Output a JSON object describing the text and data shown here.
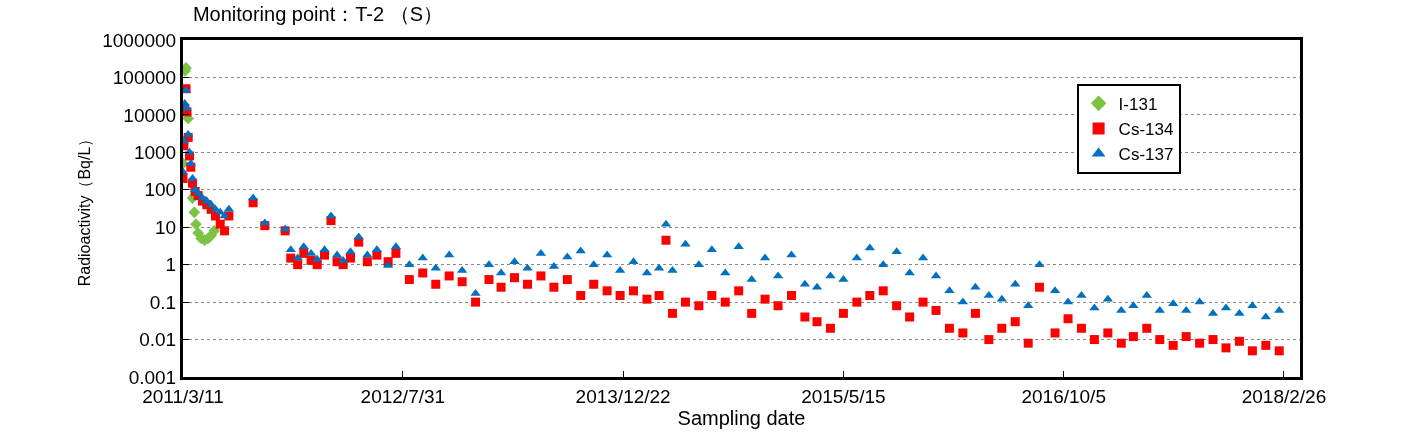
{
  "chart_data": {
    "type": "scatter",
    "title": "Monitoring point：T-2 （S）",
    "xlabel": "Sampling date",
    "ylabel": "Radioactivity（Bq/L）",
    "log": "y",
    "grid": "y",
    "legend": "top right",
    "xlim": [
      "2011-03-11",
      "2018-04-04"
    ],
    "xticks": [
      {
        "value": "2011-03-11",
        "label": "2011/3/11"
      },
      {
        "value": "2012-07-31",
        "label": "2012/7/31"
      },
      {
        "value": "2013-12-22",
        "label": "2013/12/22"
      },
      {
        "value": "2015-05-15",
        "label": "2015/5/15"
      },
      {
        "value": "2016-10-05",
        "label": "2016/10/5"
      },
      {
        "value": "2018-02-26",
        "label": "2018/2/26"
      }
    ],
    "ylim": [
      0.001,
      1000000
    ],
    "yticks": [
      0.001,
      0.01,
      0.1,
      1,
      10,
      100,
      1000,
      10000,
      100000,
      1000000
    ],
    "series": [
      {
        "name": "I-131",
        "color": "#7dc242",
        "marker": "diamond",
        "x": [
          "2011-03-11",
          "2011-03-13",
          "2011-03-16",
          "2011-03-18",
          "2011-03-20",
          "2011-03-23",
          "2011-03-26",
          "2011-03-29",
          "2011-04-02",
          "2011-04-06",
          "2011-04-10",
          "2011-04-15",
          "2011-04-22",
          "2011-04-30",
          "2011-05-08",
          "2011-05-15",
          "2011-05-22"
        ],
        "values": [
          500,
          null,
          150000,
          180000,
          null,
          8000,
          null,
          null,
          60,
          25,
          12,
          7,
          5,
          4.5,
          5,
          6,
          8
        ]
      },
      {
        "name": "Cs-134",
        "color": "#ff0000",
        "marker": "square",
        "x": [
          "2011-03-11",
          "2011-03-13",
          "2011-03-15",
          "2011-03-18",
          "2011-03-20",
          "2011-03-23",
          "2011-03-26",
          "2011-03-29",
          "2011-04-02",
          "2011-04-08",
          "2011-04-15",
          "2011-04-25",
          "2011-05-05",
          "2011-05-15",
          "2011-05-25",
          "2011-06-05",
          "2011-06-15",
          "2011-06-25",
          "2011-08-20",
          "2011-09-16",
          "2011-11-02",
          "2011-11-15",
          "2011-12-01",
          "2011-12-15",
          "2012-01-01",
          "2012-01-15",
          "2012-02-01",
          "2012-02-16",
          "2012-03-01",
          "2012-03-15",
          "2012-04-01",
          "2012-04-20",
          "2012-05-10",
          "2012-06-01",
          "2012-06-27",
          "2012-07-15",
          "2012-08-15",
          "2012-09-15",
          "2012-10-15",
          "2012-11-15",
          "2012-12-15",
          "2013-01-15",
          "2013-02-15",
          "2013-03-15",
          "2013-04-15",
          "2013-05-15",
          "2013-06-15",
          "2013-07-15",
          "2013-08-15",
          "2013-09-15",
          "2013-10-15",
          "2013-11-15",
          "2013-12-15",
          "2014-01-15",
          "2014-02-15",
          "2014-03-15",
          "2014-03-31",
          "2014-04-15",
          "2014-05-15",
          "2014-06-15",
          "2014-07-15",
          "2014-08-15",
          "2014-09-15",
          "2014-10-15",
          "2014-11-15",
          "2014-12-15",
          "2015-01-15",
          "2015-02-15",
          "2015-03-15",
          "2015-04-15",
          "2015-05-15",
          "2015-06-15",
          "2015-07-15",
          "2015-08-15",
          "2015-09-15",
          "2015-10-15",
          "2015-11-15",
          "2015-12-15",
          "2016-01-15",
          "2016-02-15",
          "2016-03-15",
          "2016-04-15",
          "2016-05-15",
          "2016-06-15",
          "2016-07-15",
          "2016-08-10",
          "2016-09-15",
          "2016-10-15",
          "2016-11-15",
          "2016-12-15",
          "2017-01-15",
          "2017-02-15",
          "2017-03-15",
          "2017-04-15",
          "2017-05-15",
          "2017-06-15",
          "2017-07-15",
          "2017-08-15",
          "2017-09-15",
          "2017-10-15",
          "2017-11-15",
          "2017-12-15",
          "2018-01-15",
          "2018-02-15"
        ],
        "values": [
          200,
          1500,
          15000,
          50000,
          12000,
          2500,
          800,
          400,
          150,
          90,
          70,
          50,
          40,
          30,
          20,
          12,
          8,
          20,
          45,
          11,
          8,
          1.5,
          1.0,
          2,
          1.3,
          1.0,
          1.8,
          15,
          1.2,
          1.0,
          1.5,
          4,
          1.2,
          1.8,
          1.2,
          2,
          0.4,
          0.6,
          0.3,
          0.5,
          0.35,
          0.1,
          0.4,
          0.25,
          0.45,
          0.3,
          0.5,
          0.25,
          0.4,
          0.15,
          0.3,
          0.2,
          0.15,
          0.2,
          0.12,
          0.15,
          4.5,
          0.05,
          0.1,
          0.08,
          0.15,
          0.1,
          0.2,
          0.05,
          0.12,
          0.08,
          0.15,
          0.04,
          0.03,
          0.02,
          0.05,
          0.1,
          0.15,
          0.2,
          0.08,
          0.04,
          0.1,
          0.06,
          0.02,
          0.015,
          0.05,
          0.01,
          0.02,
          0.03,
          0.008,
          0.25,
          0.015,
          0.036,
          0.02,
          0.01,
          0.015,
          0.008,
          0.012,
          0.02,
          0.01,
          0.007,
          0.012,
          0.008,
          0.01,
          0.006,
          0.009,
          0.005,
          0.007,
          0.005
        ]
      },
      {
        "name": "Cs-137",
        "color": "#0070c0",
        "marker": "triangle",
        "x": [
          "2011-03-11",
          "2011-03-13",
          "2011-03-15",
          "2011-03-18",
          "2011-03-20",
          "2011-03-23",
          "2011-03-26",
          "2011-03-29",
          "2011-04-02",
          "2011-04-08",
          "2011-04-15",
          "2011-04-25",
          "2011-05-05",
          "2011-05-15",
          "2011-05-25",
          "2011-06-05",
          "2011-06-15",
          "2011-06-25",
          "2011-08-20",
          "2011-09-16",
          "2011-11-02",
          "2011-11-15",
          "2011-12-01",
          "2011-12-15",
          "2012-01-01",
          "2012-01-15",
          "2012-02-01",
          "2012-02-16",
          "2012-03-01",
          "2012-03-15",
          "2012-04-01",
          "2012-04-20",
          "2012-05-10",
          "2012-06-01",
          "2012-06-27",
          "2012-07-15",
          "2012-08-15",
          "2012-09-15",
          "2012-10-15",
          "2012-11-15",
          "2012-12-15",
          "2013-01-15",
          "2013-02-15",
          "2013-03-15",
          "2013-04-15",
          "2013-05-15",
          "2013-06-15",
          "2013-07-15",
          "2013-08-15",
          "2013-09-15",
          "2013-10-15",
          "2013-11-15",
          "2013-12-15",
          "2014-01-15",
          "2014-02-15",
          "2014-03-15",
          "2014-03-31",
          "2014-04-15",
          "2014-05-15",
          "2014-06-15",
          "2014-07-15",
          "2014-08-15",
          "2014-09-15",
          "2014-10-15",
          "2014-11-15",
          "2014-12-15",
          "2015-01-15",
          "2015-02-15",
          "2015-03-15",
          "2015-04-15",
          "2015-05-15",
          "2015-06-15",
          "2015-07-15",
          "2015-08-15",
          "2015-09-15",
          "2015-10-15",
          "2015-11-15",
          "2015-12-15",
          "2016-01-15",
          "2016-02-15",
          "2016-03-15",
          "2016-04-15",
          "2016-05-15",
          "2016-06-15",
          "2016-07-15",
          "2016-08-10",
          "2016-09-15",
          "2016-10-15",
          "2016-11-15",
          "2016-12-15",
          "2017-01-15",
          "2017-02-15",
          "2017-03-15",
          "2017-04-15",
          "2017-05-15",
          "2017-06-15",
          "2017-07-15",
          "2017-08-15",
          "2017-09-15",
          "2017-10-15",
          "2017-11-15",
          "2017-12-15",
          "2018-01-15",
          "2018-02-15"
        ],
        "values": [
          300,
          2000,
          20000,
          45000,
          15000,
          3000,
          1000,
          500,
          200,
          100,
          80,
          60,
          50,
          40,
          30,
          25,
          20,
          30,
          60,
          13,
          9,
          2.5,
          1.5,
          3,
          2,
          1.4,
          2.5,
          20,
          1.8,
          1.3,
          2.2,
          5.5,
          1.8,
          2.5,
          0.95,
          3,
          1.0,
          1.5,
          0.8,
          1.8,
          0.7,
          0.17,
          1.0,
          0.6,
          1.2,
          0.8,
          2.0,
          0.9,
          1.6,
          2.3,
          1.0,
          1.8,
          0.7,
          1.2,
          0.6,
          0.8,
          12,
          0.7,
          3.5,
          1.0,
          2.5,
          0.6,
          3.0,
          0.4,
          1.5,
          0.5,
          1.8,
          0.3,
          0.25,
          0.5,
          0.4,
          1.5,
          2.8,
          1.0,
          2.2,
          0.6,
          1.5,
          0.5,
          0.2,
          0.1,
          0.25,
          0.15,
          0.12,
          0.3,
          0.08,
          1.0,
          0.2,
          0.1,
          0.15,
          0.07,
          0.12,
          0.06,
          0.08,
          0.15,
          0.06,
          0.09,
          0.06,
          0.1,
          0.05,
          0.07,
          0.05,
          0.08,
          0.04,
          0.06
        ]
      }
    ]
  }
}
